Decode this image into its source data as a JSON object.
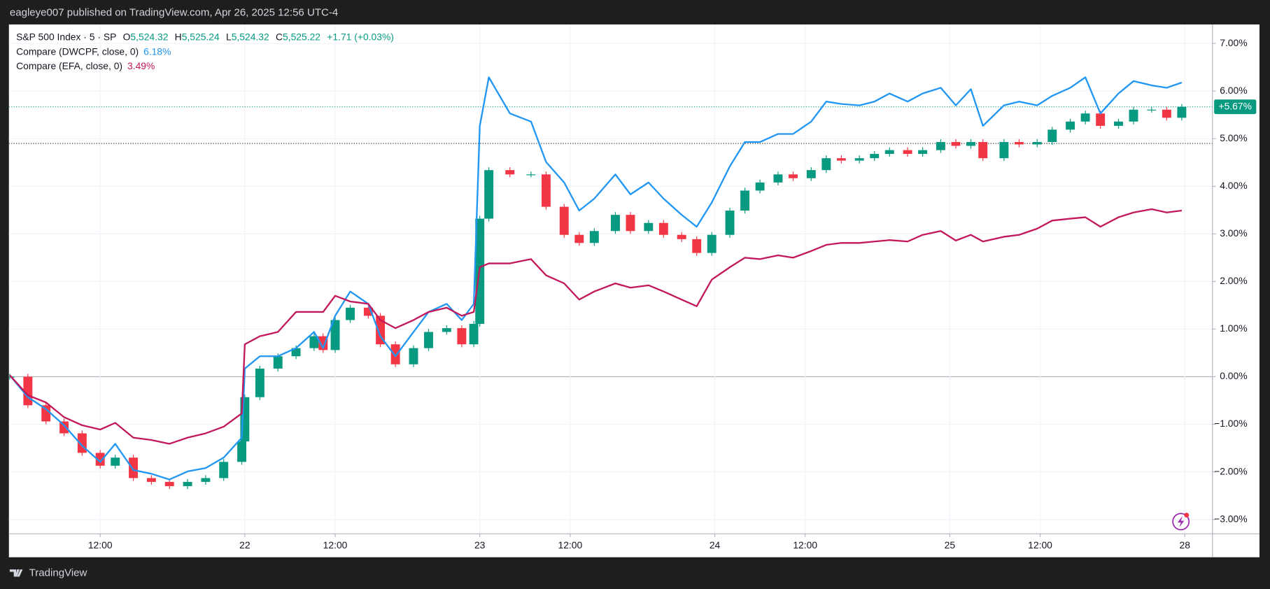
{
  "header": {
    "text": "eagleye007 published on TradingView.com, Apr 26, 2025 12:56 UTC-4"
  },
  "footer": {
    "brand": "TradingView"
  },
  "chart_data": {
    "type": "candlestick",
    "x": [
      0,
      6,
      12,
      18,
      24,
      30,
      35,
      41,
      47,
      53,
      59,
      65,
      71,
      77,
      78,
      83,
      89,
      95,
      101,
      104,
      108,
      113,
      119,
      123,
      128,
      134,
      139,
      145,
      150,
      154,
      156,
      159,
      166,
      173,
      178,
      184,
      189,
      194,
      201,
      206,
      212,
      217,
      223,
      228,
      233,
      239,
      244,
      249,
      255,
      260,
      266,
      271,
      276,
      282,
      287,
      292,
      298,
      303,
      309,
      314,
      319,
      323,
      330,
      335,
      341,
      346,
      352,
      357,
      362,
      368,
      373,
      379,
      384,
      389
    ],
    "xlim": [
      -0.3,
      399.2
    ],
    "xticks": [
      {
        "value": 30,
        "label": "12:00"
      },
      {
        "value": 78,
        "label": "22"
      },
      {
        "value": 108,
        "label": "12:00"
      },
      {
        "value": 156,
        "label": "23"
      },
      {
        "value": 186,
        "label": "12:00"
      },
      {
        "value": 234,
        "label": "24"
      },
      {
        "value": 264,
        "label": "12:00"
      },
      {
        "value": 312,
        "label": "25"
      },
      {
        "value": 342,
        "label": "12:00"
      },
      {
        "value": 390,
        "label": "28"
      }
    ],
    "ylim": [
      -3.3,
      7.4
    ],
    "yticks": [
      {
        "value": -3,
        "label": "−3.00%"
      },
      {
        "value": -2,
        "label": "−2.00%"
      },
      {
        "value": -1,
        "label": "−1.00%"
      },
      {
        "value": 0,
        "label": "0.00%"
      },
      {
        "value": 1,
        "label": "1.00%"
      },
      {
        "value": 2,
        "label": "2.00%"
      },
      {
        "value": 3,
        "label": "3.00%"
      },
      {
        "value": 4,
        "label": "4.00%"
      },
      {
        "value": 5,
        "label": "5.00%"
      },
      {
        "value": 6,
        "label": "6.00%"
      },
      {
        "value": 7,
        "label": "7.00%"
      }
    ],
    "grid": true,
    "reference_lines": [
      {
        "value": 5.67,
        "color": "#089981"
      },
      {
        "value": 4.9,
        "color": "#131722"
      }
    ],
    "series": [
      {
        "name": "S&P 500 Index · 5 · SP",
        "type": "candlestick",
        "up_color": "#089981",
        "down_color": "#f23645",
        "stats": [
          {
            "key": "O",
            "value": "5,524.32"
          },
          {
            "key": "H",
            "value": "5,525.24"
          },
          {
            "key": "L",
            "value": "5,524.32"
          },
          {
            "key": "C",
            "value": "5,525.22"
          }
        ],
        "change": "+1.71 (+0.03%)",
        "last_label": "+5.67%",
        "open": [
          0,
          0,
          -0.6,
          -0.94,
          -1.19,
          -1.6,
          -1.87,
          -1.7,
          -2.13,
          -2.21,
          -2.3,
          -2.21,
          -2.13,
          -1.79,
          -1.36,
          -0.43,
          0.17,
          0.43,
          0.6,
          0.85,
          0.56,
          1.19,
          1.45,
          1.28,
          0.68,
          0.26,
          0.6,
          0.94,
          1.02,
          0.68,
          1.11,
          3.32,
          4.34,
          4.25,
          4.25,
          3.57,
          2.98,
          2.81,
          3.06,
          3.4,
          3.06,
          3.23,
          2.98,
          2.89,
          2.6,
          2.98,
          3.49,
          3.91,
          4.08,
          4.25,
          4.17,
          4.34,
          4.59,
          4.54,
          4.59,
          4.68,
          4.76,
          4.68,
          4.76,
          4.93,
          4.85,
          4.93,
          4.59,
          4.93,
          4.88,
          4.93,
          5.19,
          5.36,
          5.53,
          5.27,
          5.36,
          5.61,
          5.61,
          5.44
        ],
        "high": [
          0.06,
          0.06,
          -0.54,
          -0.88,
          -1.13,
          -1.54,
          -1.64,
          -1.64,
          -2.07,
          -2.15,
          -2.15,
          -2.07,
          -1.73,
          -1.3,
          -0.37,
          0.23,
          0.49,
          0.66,
          0.91,
          0.91,
          1.25,
          1.51,
          1.51,
          1.34,
          0.74,
          0.66,
          1.0,
          1.08,
          1.08,
          1.17,
          3.38,
          4.4,
          4.4,
          4.31,
          4.31,
          3.63,
          3.04,
          3.12,
          3.46,
          3.46,
          3.29,
          3.29,
          3.04,
          2.95,
          3.04,
          3.55,
          3.97,
          4.14,
          4.31,
          4.31,
          4.4,
          4.65,
          4.65,
          4.65,
          4.74,
          4.82,
          4.82,
          4.82,
          4.99,
          4.99,
          4.99,
          4.99,
          4.99,
          4.99,
          4.99,
          5.25,
          5.42,
          5.59,
          5.59,
          5.42,
          5.67,
          5.67,
          5.67,
          5.73
        ],
        "low": [
          -0.06,
          -0.66,
          -1.0,
          -1.25,
          -1.66,
          -1.93,
          -1.93,
          -2.19,
          -2.27,
          -2.36,
          -2.36,
          -2.27,
          -2.19,
          -1.85,
          -1.42,
          -0.49,
          0.11,
          0.37,
          0.54,
          0.5,
          0.5,
          1.13,
          1.22,
          0.62,
          0.2,
          0.2,
          0.54,
          0.88,
          0.62,
          0.62,
          1.05,
          3.26,
          4.19,
          4.19,
          3.51,
          2.92,
          2.75,
          2.75,
          3.0,
          3.0,
          3.0,
          2.92,
          2.83,
          2.54,
          2.54,
          2.92,
          3.43,
          3.85,
          4.02,
          4.11,
          4.11,
          4.28,
          4.48,
          4.48,
          4.53,
          4.62,
          4.62,
          4.62,
          4.7,
          4.79,
          4.79,
          4.53,
          4.53,
          4.82,
          4.82,
          4.87,
          5.13,
          5.3,
          5.21,
          5.21,
          5.3,
          5.55,
          5.38,
          5.38
        ],
        "close": [
          0,
          -0.6,
          -0.94,
          -1.19,
          -1.6,
          -1.87,
          -1.7,
          -2.13,
          -2.21,
          -2.3,
          -2.21,
          -2.13,
          -1.79,
          -1.36,
          -0.43,
          0.17,
          0.43,
          0.6,
          0.85,
          0.56,
          1.19,
          1.45,
          1.28,
          0.68,
          0.26,
          0.6,
          0.94,
          1.02,
          0.68,
          1.11,
          3.32,
          4.34,
          4.25,
          4.25,
          3.57,
          2.98,
          2.81,
          3.06,
          3.4,
          3.06,
          3.23,
          2.98,
          2.89,
          2.6,
          2.98,
          3.49,
          3.91,
          4.08,
          4.25,
          4.17,
          4.34,
          4.59,
          4.54,
          4.59,
          4.68,
          4.76,
          4.68,
          4.76,
          4.93,
          4.85,
          4.93,
          4.59,
          4.93,
          4.88,
          4.93,
          5.19,
          5.36,
          5.53,
          5.27,
          5.36,
          5.61,
          5.61,
          5.44,
          5.67
        ]
      },
      {
        "name": "Compare (DWCPF, close, 0)",
        "type": "line",
        "color": "#2196f3",
        "last_label": "6.18%",
        "values": [
          0.03,
          -0.43,
          -0.68,
          -1.02,
          -1.45,
          -1.79,
          -1.41,
          -1.96,
          -2.04,
          -2.16,
          -1.99,
          -1.92,
          -1.7,
          -1.28,
          0.17,
          0.43,
          0.43,
          0.6,
          0.94,
          0.6,
          1.28,
          1.79,
          1.53,
          0.85,
          0.43,
          0.94,
          1.36,
          1.53,
          1.19,
          1.53,
          5.27,
          6.29,
          5.53,
          5.36,
          4.51,
          4.08,
          3.49,
          3.74,
          4.25,
          3.83,
          4.08,
          3.74,
          3.4,
          3.15,
          3.66,
          4.42,
          4.93,
          4.93,
          5.1,
          5.1,
          5.36,
          5.78,
          5.73,
          5.7,
          5.78,
          5.95,
          5.78,
          5.95,
          6.07,
          5.7,
          6.04,
          5.27,
          5.7,
          5.78,
          5.7,
          5.9,
          6.07,
          6.29,
          5.53,
          5.95,
          6.21,
          6.12,
          6.07,
          6.18
        ]
      },
      {
        "name": "Compare (EFA, close, 0)",
        "type": "line",
        "color": "#c2185b",
        "last_label": "3.49%",
        "values": [
          0.03,
          -0.39,
          -0.54,
          -0.85,
          -1.02,
          -1.11,
          -0.97,
          -1.28,
          -1.33,
          -1.41,
          -1.28,
          -1.19,
          -1.05,
          -0.77,
          0.68,
          0.85,
          0.94,
          1.36,
          1.36,
          1.36,
          1.7,
          1.58,
          1.53,
          1.19,
          1.02,
          1.19,
          1.36,
          1.45,
          1.28,
          1.36,
          2.3,
          2.38,
          2.38,
          2.47,
          2.13,
          1.96,
          1.62,
          1.79,
          1.96,
          1.87,
          1.92,
          1.79,
          1.62,
          1.48,
          2.04,
          2.3,
          2.5,
          2.47,
          2.55,
          2.5,
          2.64,
          2.77,
          2.81,
          2.81,
          2.84,
          2.87,
          2.84,
          2.98,
          3.06,
          2.86,
          2.98,
          2.84,
          2.94,
          2.98,
          3.11,
          3.28,
          3.32,
          3.35,
          3.15,
          3.35,
          3.45,
          3.52,
          3.45,
          3.49
        ]
      }
    ]
  }
}
